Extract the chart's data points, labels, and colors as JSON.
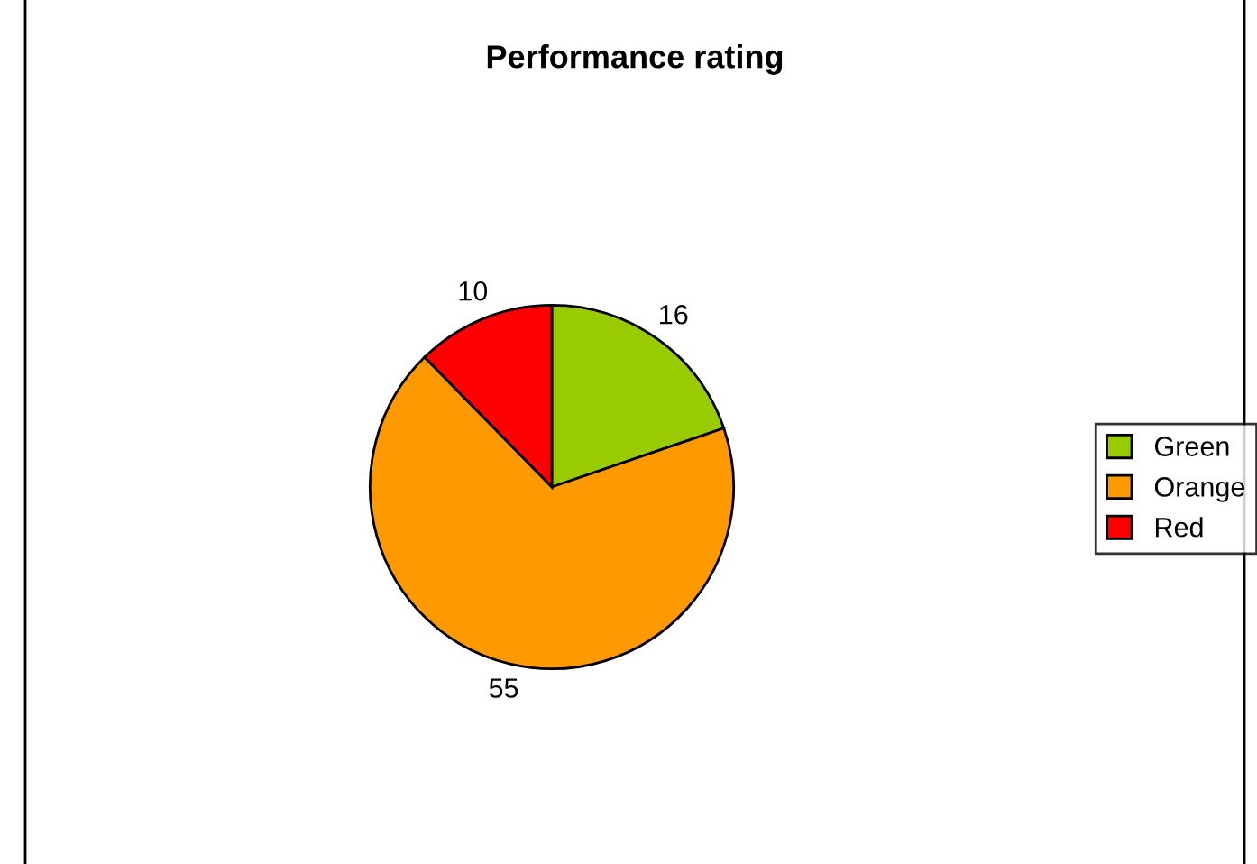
{
  "chart_data": {
    "type": "pie",
    "title": "Performance rating",
    "categories": [
      "Green",
      "Orange",
      "Red"
    ],
    "values": [
      16,
      55,
      10
    ],
    "colors": [
      "#99cc00",
      "#ff9900",
      "#ff0000"
    ],
    "data_labels": true,
    "legend": "right"
  }
}
